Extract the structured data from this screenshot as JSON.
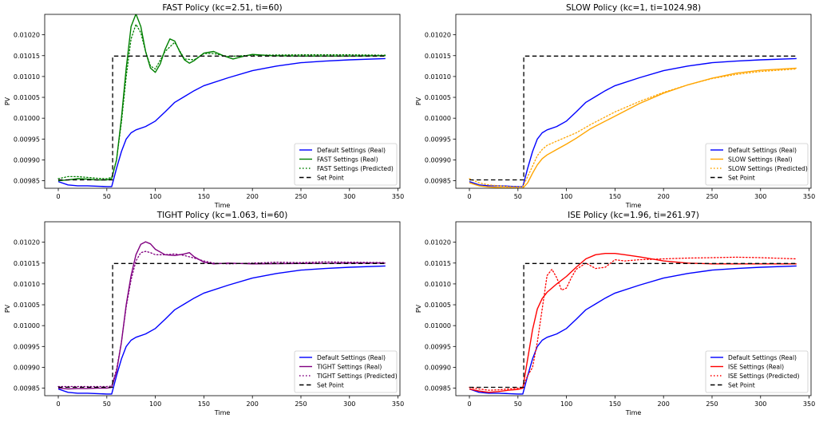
{
  "figure": {
    "xlabel": "Time",
    "ylabel": "PV",
    "xlim": [
      -14,
      352
    ],
    "ylim": [
      0.009832,
      0.010249
    ],
    "xticks": [
      0,
      50,
      100,
      150,
      200,
      250,
      300,
      350
    ],
    "yticks": [
      0.00985,
      0.0099,
      0.00995,
      0.01,
      0.01005,
      0.0101,
      0.01015,
      0.0102
    ],
    "ytick_labels": [
      "0.00985",
      "0.00990",
      "0.00995",
      "0.01000",
      "0.01005",
      "0.01010",
      "0.01015",
      "0.01020"
    ],
    "legend_position": "lower-right",
    "colors": {
      "default": "#0000ff",
      "fast": "#008000",
      "slow": "#ffa500",
      "tight": "#800080",
      "ise": "#ff0000",
      "setpoint": "#000000"
    }
  },
  "chart_data": [
    {
      "type": "line",
      "title": "FAST Policy (kc=2.51, ti=60)",
      "xlabel": "Time",
      "ylabel": "PV",
      "color_key": "fast",
      "series": [
        {
          "name": "Default Settings (Real)",
          "style": "solid",
          "color_key": "default",
          "x": [
            0,
            10,
            20,
            30,
            40,
            50,
            55,
            60,
            65,
            70,
            75,
            80,
            90,
            100,
            110,
            120,
            130,
            140,
            150,
            175,
            200,
            225,
            250,
            275,
            300,
            337
          ],
          "y": [
            0.009848,
            0.00984,
            0.009838,
            0.009838,
            0.009837,
            0.009836,
            0.009836,
            0.00988,
            0.00992,
            0.00995,
            0.009965,
            0.009972,
            0.00998,
            0.009993,
            0.010015,
            0.010038,
            0.010052,
            0.010066,
            0.010078,
            0.010097,
            0.010114,
            0.010125,
            0.010133,
            0.010137,
            0.01014,
            0.010143
          ]
        },
        {
          "name": "FAST Settings (Real)",
          "style": "solid",
          "color_key": "fast",
          "x": [
            0,
            10,
            20,
            30,
            40,
            50,
            55,
            60,
            65,
            70,
            75,
            80,
            85,
            90,
            95,
            100,
            105,
            110,
            115,
            120,
            125,
            130,
            135,
            140,
            150,
            160,
            170,
            180,
            190,
            200,
            220,
            250,
            300,
            337
          ],
          "y": [
            0.00985,
            0.009852,
            0.009855,
            0.009854,
            0.009852,
            0.009852,
            0.009855,
            0.0099,
            0.01,
            0.01012,
            0.01022,
            0.01025,
            0.01022,
            0.01016,
            0.01012,
            0.01011,
            0.01013,
            0.010165,
            0.01019,
            0.010185,
            0.01016,
            0.01014,
            0.010132,
            0.010138,
            0.010156,
            0.01016,
            0.01015,
            0.010142,
            0.010148,
            0.010153,
            0.01015,
            0.010149,
            0.010149,
            0.01015
          ]
        },
        {
          "name": "FAST Settings (Predicted)",
          "style": "dotted",
          "color_key": "fast",
          "x": [
            0,
            10,
            20,
            30,
            40,
            50,
            55,
            60,
            65,
            70,
            75,
            80,
            85,
            90,
            95,
            100,
            110,
            120,
            130,
            140,
            150,
            160,
            175,
            200,
            250,
            300,
            337
          ],
          "y": [
            0.009855,
            0.00986,
            0.00986,
            0.009858,
            0.009856,
            0.009855,
            0.009858,
            0.0099,
            0.00999,
            0.0101,
            0.01019,
            0.010225,
            0.010205,
            0.01016,
            0.010125,
            0.010118,
            0.01016,
            0.010182,
            0.010142,
            0.01014,
            0.010155,
            0.010155,
            0.010148,
            0.010151,
            0.010152,
            0.010152,
            0.010151
          ]
        },
        {
          "name": "Set Point",
          "style": "dashed",
          "color_key": "setpoint",
          "x": [
            0,
            56,
            56,
            337
          ],
          "y": [
            0.009852,
            0.009852,
            0.010149,
            0.010149
          ]
        }
      ]
    },
    {
      "type": "line",
      "title": "SLOW Policy (kc=1, ti=1024.98)",
      "xlabel": "Time",
      "ylabel": "PV",
      "color_key": "slow",
      "series": [
        {
          "name": "Default Settings (Real)",
          "style": "solid",
          "color_key": "default",
          "x": [
            0,
            10,
            20,
            30,
            40,
            50,
            55,
            60,
            65,
            70,
            75,
            80,
            90,
            100,
            110,
            120,
            130,
            140,
            150,
            175,
            200,
            225,
            250,
            275,
            300,
            337
          ],
          "y": [
            0.009848,
            0.00984,
            0.009838,
            0.009838,
            0.009837,
            0.009836,
            0.009836,
            0.00988,
            0.00992,
            0.00995,
            0.009965,
            0.009972,
            0.00998,
            0.009993,
            0.010015,
            0.010038,
            0.010052,
            0.010066,
            0.010078,
            0.010097,
            0.010114,
            0.010125,
            0.010133,
            0.010137,
            0.01014,
            0.010143
          ]
        },
        {
          "name": "SLOW Settings (Real)",
          "style": "solid",
          "color_key": "slow",
          "x": [
            0,
            10,
            20,
            30,
            40,
            50,
            55,
            60,
            65,
            70,
            75,
            80,
            90,
            100,
            110,
            125,
            150,
            175,
            200,
            225,
            250,
            275,
            300,
            337
          ],
          "y": [
            0.009845,
            0.009838,
            0.009835,
            0.009834,
            0.009833,
            0.009832,
            0.009832,
            0.009845,
            0.009868,
            0.009888,
            0.009903,
            0.009912,
            0.009925,
            0.009938,
            0.009952,
            0.009975,
            0.010005,
            0.010035,
            0.01006,
            0.01008,
            0.010096,
            0.010108,
            0.010115,
            0.01012
          ]
        },
        {
          "name": "SLOW Settings (Predicted)",
          "style": "dotted",
          "color_key": "slow",
          "x": [
            0,
            10,
            20,
            30,
            40,
            50,
            55,
            60,
            65,
            70,
            75,
            80,
            90,
            100,
            110,
            125,
            150,
            175,
            200,
            225,
            250,
            275,
            300,
            337
          ],
          "y": [
            0.009855,
            0.009845,
            0.00984,
            0.009838,
            0.009836,
            0.009835,
            0.009836,
            0.00986,
            0.009885,
            0.00991,
            0.009925,
            0.009935,
            0.009945,
            0.009955,
            0.009965,
            0.009985,
            0.010015,
            0.01004,
            0.010062,
            0.01008,
            0.010095,
            0.010105,
            0.010112,
            0.010118
          ]
        },
        {
          "name": "Set Point",
          "style": "dashed",
          "color_key": "setpoint",
          "x": [
            0,
            56,
            56,
            337
          ],
          "y": [
            0.009852,
            0.009852,
            0.010149,
            0.010149
          ]
        }
      ]
    },
    {
      "type": "line",
      "title": "TIGHT Policy (kc=1.063, ti=60)",
      "xlabel": "Time",
      "ylabel": "PV",
      "color_key": "tight",
      "series": [
        {
          "name": "Default Settings (Real)",
          "style": "solid",
          "color_key": "default",
          "x": [
            0,
            10,
            20,
            30,
            40,
            50,
            55,
            60,
            65,
            70,
            75,
            80,
            90,
            100,
            110,
            120,
            130,
            140,
            150,
            175,
            200,
            225,
            250,
            275,
            300,
            337
          ],
          "y": [
            0.009848,
            0.00984,
            0.009838,
            0.009838,
            0.009837,
            0.009836,
            0.009836,
            0.00988,
            0.00992,
            0.00995,
            0.009965,
            0.009972,
            0.00998,
            0.009993,
            0.010015,
            0.010038,
            0.010052,
            0.010066,
            0.010078,
            0.010097,
            0.010114,
            0.010125,
            0.010133,
            0.010137,
            0.01014,
            0.010143
          ]
        },
        {
          "name": "TIGHT Settings (Real)",
          "style": "solid",
          "color_key": "tight",
          "x": [
            0,
            10,
            20,
            30,
            40,
            50,
            55,
            60,
            65,
            70,
            75,
            80,
            85,
            90,
            95,
            100,
            110,
            120,
            130,
            135,
            140,
            150,
            160,
            175,
            200,
            250,
            300,
            337
          ],
          "y": [
            0.00985,
            0.009848,
            0.009849,
            0.009849,
            0.00985,
            0.00985,
            0.009852,
            0.00989,
            0.00996,
            0.01005,
            0.01012,
            0.01017,
            0.010195,
            0.010201,
            0.010196,
            0.010183,
            0.01017,
            0.010168,
            0.010172,
            0.010175,
            0.010165,
            0.010152,
            0.010148,
            0.01015,
            0.010148,
            0.010149,
            0.01015,
            0.01015
          ]
        },
        {
          "name": "TIGHT Settings (Predicted)",
          "style": "dotted",
          "color_key": "tight",
          "x": [
            0,
            10,
            20,
            30,
            40,
            50,
            55,
            60,
            65,
            70,
            75,
            80,
            85,
            90,
            95,
            100,
            110,
            120,
            130,
            140,
            150,
            160,
            175,
            200,
            225,
            250,
            275,
            300,
            337
          ],
          "y": [
            0.009854,
            0.009854,
            0.009854,
            0.009854,
            0.009854,
            0.009854,
            0.009855,
            0.009895,
            0.00996,
            0.010045,
            0.01011,
            0.010155,
            0.010175,
            0.010178,
            0.010175,
            0.01017,
            0.01017,
            0.010172,
            0.010168,
            0.010162,
            0.010155,
            0.01015,
            0.010148,
            0.01015,
            0.010152,
            0.010151,
            0.010153,
            0.010152,
            0.010151
          ]
        },
        {
          "name": "Set Point",
          "style": "dashed",
          "color_key": "setpoint",
          "x": [
            0,
            56,
            56,
            337
          ],
          "y": [
            0.009852,
            0.009852,
            0.010149,
            0.010149
          ]
        }
      ]
    },
    {
      "type": "line",
      "title": "ISE Policy (kc=1.96, ti=261.97)",
      "xlabel": "Time",
      "ylabel": "PV",
      "color_key": "ise",
      "series": [
        {
          "name": "Default Settings (Real)",
          "style": "solid",
          "color_key": "default",
          "x": [
            0,
            10,
            20,
            30,
            40,
            50,
            55,
            60,
            65,
            70,
            75,
            80,
            90,
            100,
            110,
            120,
            130,
            140,
            150,
            175,
            200,
            225,
            250,
            275,
            300,
            337
          ],
          "y": [
            0.009848,
            0.00984,
            0.009838,
            0.009838,
            0.009837,
            0.009836,
            0.009836,
            0.00988,
            0.00992,
            0.00995,
            0.009965,
            0.009972,
            0.00998,
            0.009993,
            0.010015,
            0.010038,
            0.010052,
            0.010066,
            0.010078,
            0.010097,
            0.010114,
            0.010125,
            0.010133,
            0.010137,
            0.01014,
            0.010143
          ]
        },
        {
          "name": "ISE Settings (Real)",
          "style": "solid",
          "color_key": "ise",
          "x": [
            0,
            10,
            20,
            30,
            40,
            50,
            55,
            60,
            65,
            70,
            75,
            80,
            90,
            100,
            110,
            120,
            130,
            140,
            150,
            160,
            175,
            200,
            225,
            250,
            275,
            300,
            337
          ],
          "y": [
            0.009848,
            0.009843,
            0.00984,
            0.009842,
            0.009845,
            0.009847,
            0.00985,
            0.00992,
            0.00999,
            0.01004,
            0.010065,
            0.01008,
            0.0101,
            0.010118,
            0.01014,
            0.01016,
            0.01017,
            0.010173,
            0.010173,
            0.01017,
            0.010165,
            0.010155,
            0.01015,
            0.010148,
            0.010148,
            0.010148,
            0.010148
          ]
        },
        {
          "name": "ISE Settings (Predicted)",
          "style": "dotted",
          "color_key": "ise",
          "x": [
            0,
            10,
            20,
            30,
            40,
            50,
            55,
            60,
            65,
            70,
            75,
            80,
            85,
            90,
            95,
            100,
            105,
            110,
            120,
            130,
            140,
            150,
            160,
            175,
            200,
            225,
            250,
            275,
            300,
            337
          ],
          "y": [
            0.009852,
            0.009848,
            0.009845,
            0.009846,
            0.009848,
            0.00985,
            0.009852,
            0.00988,
            0.0099,
            0.00996,
            0.01004,
            0.01012,
            0.010135,
            0.010115,
            0.010085,
            0.01009,
            0.010115,
            0.010135,
            0.01015,
            0.010137,
            0.01014,
            0.010158,
            0.010155,
            0.010158,
            0.01016,
            0.010162,
            0.010163,
            0.010164,
            0.010163,
            0.01016
          ]
        },
        {
          "name": "Set Point",
          "style": "dashed",
          "color_key": "setpoint",
          "x": [
            0,
            56,
            56,
            337
          ],
          "y": [
            0.009852,
            0.009852,
            0.010149,
            0.010149
          ]
        }
      ]
    }
  ]
}
